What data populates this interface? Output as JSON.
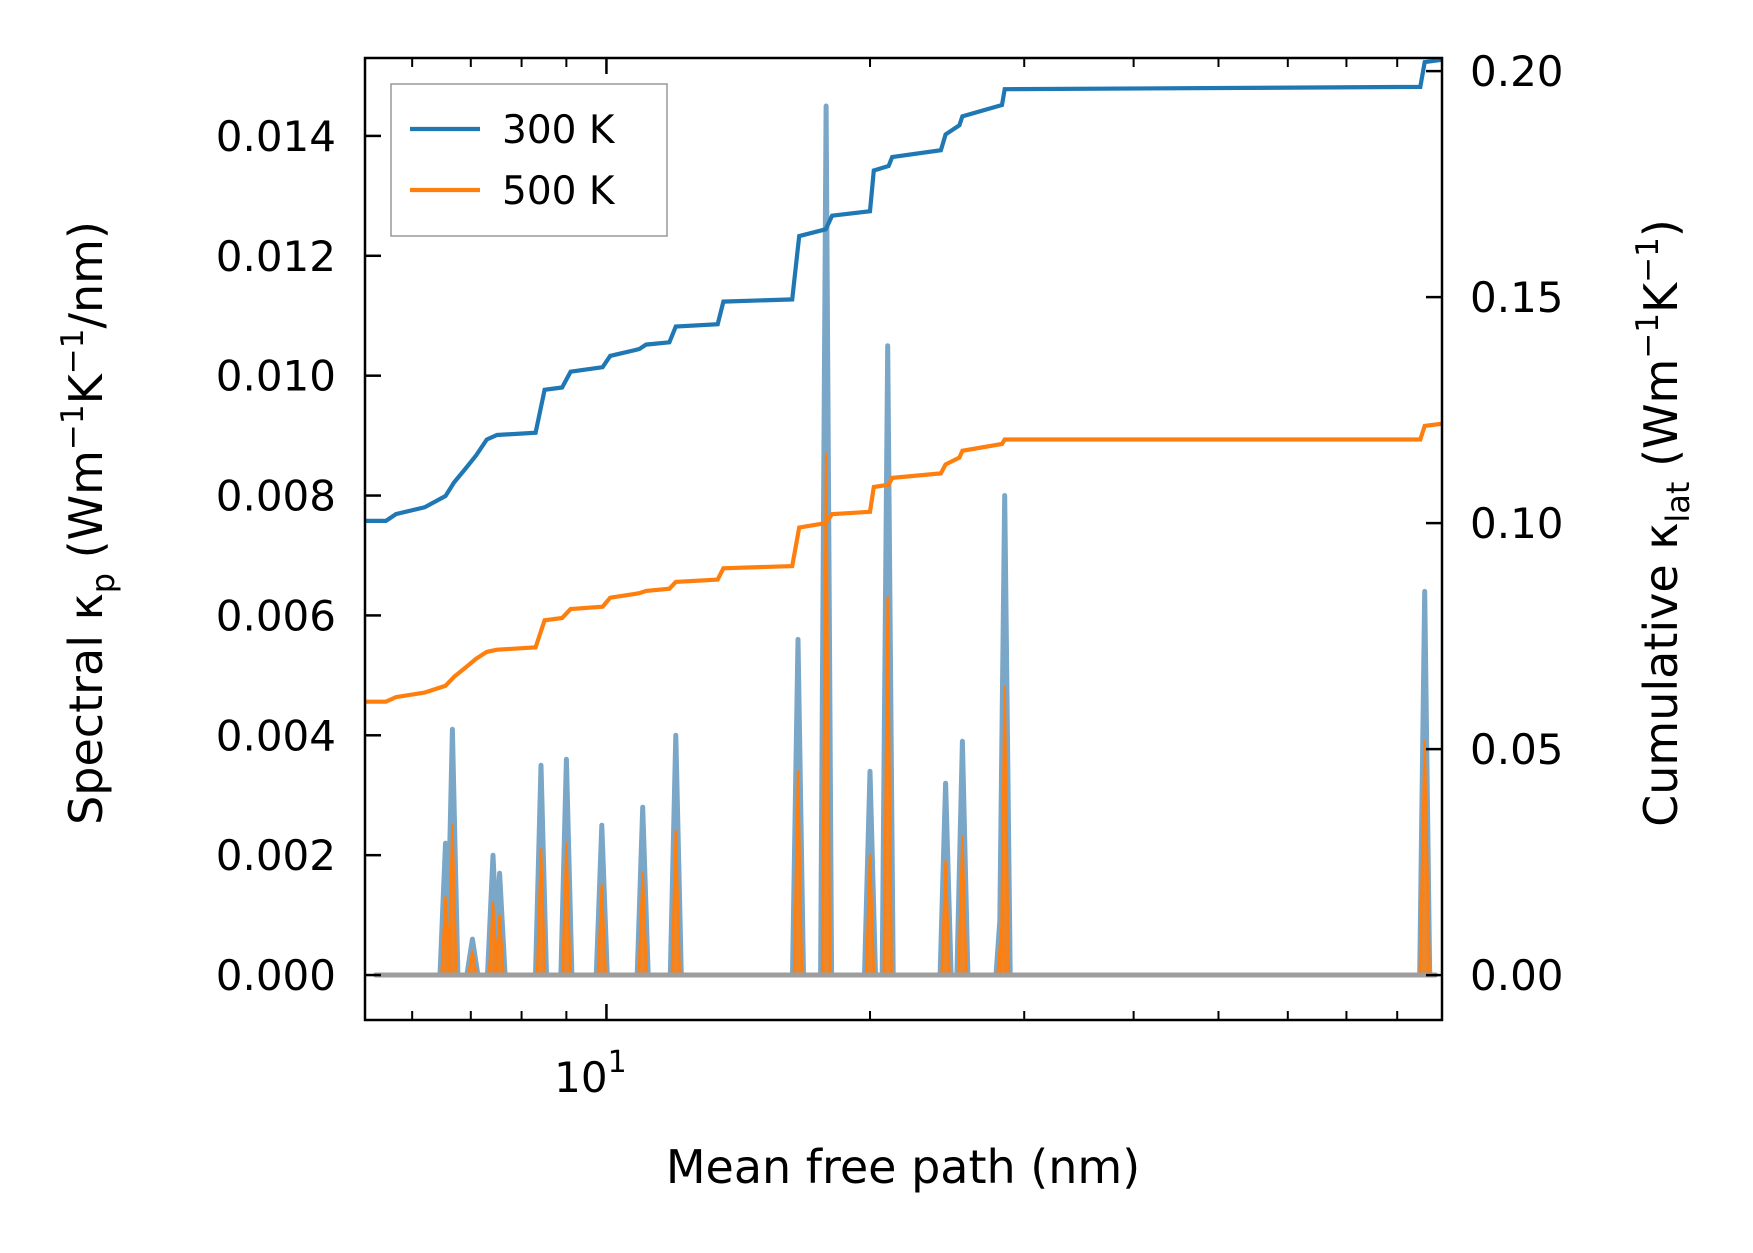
{
  "chart_data": {
    "type": "line",
    "x_scale": "log",
    "xlim": [
      5.3,
      90
    ],
    "ylim_left": [
      -0.00075,
      0.0153
    ],
    "ylim_right": [
      -0.00993,
      0.2029
    ],
    "x_tick_label": {
      "base": "10",
      "exp": "1"
    },
    "x_tick_label_value": 10,
    "major_x_ticks": [
      10
    ],
    "minor_x_ticks": [
      6,
      7,
      8,
      9,
      20,
      30,
      40,
      50,
      60,
      70,
      80,
      90
    ],
    "y_ticks_left": [
      0.0,
      0.002,
      0.004,
      0.006,
      0.008,
      0.01,
      0.012,
      0.014
    ],
    "y_tick_labels_left": [
      "0.000",
      "0.002",
      "0.004",
      "0.006",
      "0.008",
      "0.010",
      "0.012",
      "0.014"
    ],
    "y_ticks_right": [
      0.0,
      0.05,
      0.1,
      0.15,
      0.2
    ],
    "y_tick_labels_right": [
      "0.00",
      "0.05",
      "0.10",
      "0.15",
      "0.20"
    ],
    "xlabel": "Mean free path (nm)",
    "ylabel_left": {
      "p1": "Spectral κ",
      "sub": "p",
      "p2": " (Wm",
      "sup1": "−1",
      "p3": "K",
      "sup2": "−1",
      "p4": "/nm)"
    },
    "ylabel_right": {
      "p1": "Cumulative κ",
      "sub": "lat",
      "p2": " (Wm",
      "sup1": "−1",
      "p3": "K",
      "sup2": "−1",
      "p4": ")"
    },
    "legend_position": "upper-left",
    "spectral_x": [
      6.55,
      6.67,
      7.03,
      7.42,
      7.55,
      8.3,
      8.42,
      8.88,
      9.0,
      9.88,
      10.0,
      10.86,
      11.0,
      11.75,
      12.0,
      13.34,
      13.5,
      16.29,
      16.55,
      17.82,
      18.0,
      20.0,
      20.15,
      20.95,
      21.15,
      24.13,
      24.4,
      25.24,
      25.5,
      28.26,
      28.5
    ],
    "series": [
      {
        "name": "300 K",
        "legend_label": "300 K",
        "color": "#1f77b4",
        "cumulative_x": [
          5.3,
          5.6,
          5.75,
          6.2,
          6.55,
          6.7,
          6.9,
          7.1,
          7.3,
          7.5,
          8.3,
          8.5,
          8.9,
          9.1,
          9.9,
          10.1,
          10.9,
          11.1,
          11.8,
          12.0,
          13.4,
          13.6,
          16.3,
          16.6,
          17.8,
          18.1,
          20.0,
          20.2,
          21.0,
          21.2,
          24.1,
          24.4,
          25.3,
          25.5,
          28.3,
          28.5,
          85.0,
          86.0,
          90.0
        ],
        "cumulative_y": [
          0.1005,
          0.1005,
          0.102,
          0.1035,
          0.106,
          0.109,
          0.112,
          0.115,
          0.1185,
          0.1195,
          0.12,
          0.1295,
          0.13,
          0.1335,
          0.1345,
          0.137,
          0.1385,
          0.1395,
          0.14,
          0.1435,
          0.144,
          0.149,
          0.1495,
          0.1635,
          0.165,
          0.168,
          0.169,
          0.178,
          0.179,
          0.181,
          0.1825,
          0.186,
          0.188,
          0.19,
          0.1925,
          0.196,
          0.1965,
          0.202,
          0.2025
        ],
        "spectral_y": [
          0.0022,
          0.0041,
          0.0006,
          0.002,
          0.0017,
          0.0,
          0.0035,
          0.0,
          0.0036,
          0.0025,
          0.0,
          0.0,
          0.0028,
          0.0,
          0.004,
          0.0,
          0.0,
          0.0,
          0.0056,
          0.0145,
          0.0,
          0.0034,
          0.0,
          0.0105,
          0.0,
          0.0,
          0.0032,
          0.0,
          0.0039,
          0.0013,
          0.008
        ]
      },
      {
        "name": "500 K",
        "legend_label": "500 K",
        "color": "#ff7f0e",
        "cumulative_x": [
          5.3,
          5.6,
          5.75,
          6.2,
          6.55,
          6.7,
          6.9,
          7.1,
          7.3,
          7.5,
          8.3,
          8.5,
          8.9,
          9.1,
          9.9,
          10.1,
          10.9,
          11.1,
          11.8,
          12.0,
          13.4,
          13.6,
          16.3,
          16.6,
          17.8,
          18.1,
          20.0,
          20.2,
          21.0,
          21.2,
          24.1,
          24.4,
          25.3,
          25.5,
          28.3,
          28.5,
          85.0,
          86.0,
          90.0
        ],
        "cumulative_y": [
          0.0605,
          0.0605,
          0.0615,
          0.0625,
          0.064,
          0.066,
          0.068,
          0.07,
          0.0715,
          0.072,
          0.0725,
          0.0785,
          0.079,
          0.081,
          0.0815,
          0.0835,
          0.0845,
          0.085,
          0.0855,
          0.087,
          0.0875,
          0.09,
          0.0905,
          0.099,
          0.1,
          0.102,
          0.1025,
          0.108,
          0.1085,
          0.11,
          0.111,
          0.113,
          0.1145,
          0.116,
          0.1175,
          0.1185,
          0.1185,
          0.1215,
          0.122
        ],
        "spectral_y": [
          0.0013,
          0.0025,
          0.0004,
          0.0012,
          0.001,
          0.0,
          0.0021,
          0.0,
          0.0022,
          0.0015,
          0.0,
          0.0,
          0.0017,
          0.0,
          0.0024,
          0.0,
          0.0,
          0.0,
          0.0034,
          0.0087,
          0.0,
          0.002,
          0.0,
          0.0063,
          0.0,
          0.0,
          0.0019,
          0.0,
          0.0023,
          0.0008,
          0.0048
        ]
      }
    ]
  }
}
